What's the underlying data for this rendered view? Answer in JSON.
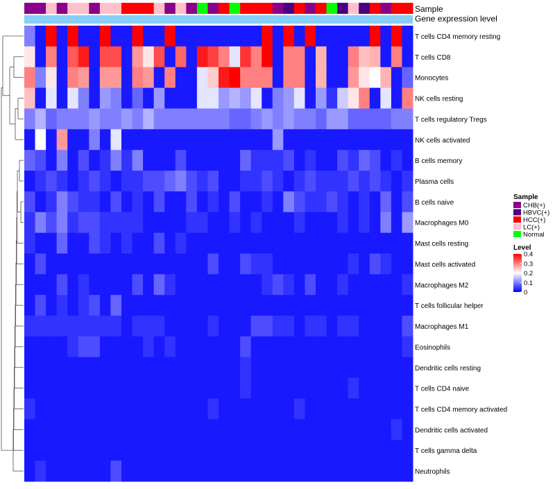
{
  "chart_data": {
    "type": "heatmap",
    "annotations": [
      {
        "name": "Sample"
      },
      {
        "name": "Gene expression level"
      }
    ],
    "gene_expression_color": "#87cefa",
    "sample_groups": [
      "CHB(+)",
      "HBVC(+)",
      "HCC(+)",
      "LC(+)",
      "Normal"
    ],
    "sample_colors": {
      "CHB(+)": "#8b008b",
      "HBVC(+)": "#4b0082",
      "HCC(+)": "#ff0000",
      "LC(+)": "#ffc0cb",
      "Normal": "#00ff00"
    },
    "samples": [
      "CHB(+)",
      "CHB(+)",
      "LC(+)",
      "CHB(+)",
      "LC(+)",
      "LC(+)",
      "CHB(+)",
      "LC(+)",
      "LC(+)",
      "HCC(+)",
      "HCC(+)",
      "HCC(+)",
      "LC(+)",
      "CHB(+)",
      "LC(+)",
      "CHB(+)",
      "Normal",
      "CHB(+)",
      "HCC(+)",
      "Normal",
      "HCC(+)",
      "HCC(+)",
      "HCC(+)",
      "CHB(+)",
      "HBVC(+)",
      "HCC(+)",
      "CHB(+)",
      "HCC(+)",
      "Normal",
      "HBVC(+)",
      "LC(+)",
      "HBVC(+)",
      "HCC(+)",
      "CHB(+)",
      "HCC(+)",
      "HCC(+)"
    ],
    "rows": [
      "T cells CD4 memory resting",
      "T cells CD8",
      "Monocytes",
      "NK cells resting",
      "T cells regulatory  Tregs",
      "NK cells activated",
      "B cells memory",
      "Plasma cells",
      "B cells naive",
      "Macrophages M0",
      "Mast cells resting",
      "Mast cells activated",
      "Macrophages M2",
      "T cells follicular helper",
      "Macrophages M1",
      "Eosinophils",
      "Dendritic cells resting",
      "T cells CD4 naive",
      "T cells CD4 memory activated",
      "Dendritic cells activated",
      "T cells gamma delta",
      "Neutrophils"
    ],
    "values": [
      [
        0.1,
        0.02,
        0.4,
        0.02,
        0.4,
        0.02,
        0.02,
        0.4,
        0.02,
        0.02,
        0.4,
        0.02,
        0.02,
        0.4,
        0.02,
        0.02,
        0.02,
        0.02,
        0.02,
        0.02,
        0.02,
        0.02,
        0.4,
        0.02,
        0.4,
        0.02,
        0.4,
        0.02,
        0.02,
        0.02,
        0.02,
        0.02,
        0.4,
        0.02,
        0.4,
        0.02
      ],
      [
        0.22,
        0.02,
        0.3,
        0.02,
        0.33,
        0.38,
        0.02,
        0.34,
        0.34,
        0.02,
        0.28,
        0.22,
        0.34,
        0.02,
        0.32,
        0.02,
        0.38,
        0.35,
        0.3,
        0.18,
        0.36,
        0.3,
        0.4,
        0.02,
        0.3,
        0.3,
        0.02,
        0.26,
        0.02,
        0.02,
        0.3,
        0.25,
        0.26,
        0.02,
        0.3,
        0.02
      ],
      [
        0.3,
        0.1,
        0.22,
        0.02,
        0.3,
        0.28,
        0.02,
        0.28,
        0.28,
        0.02,
        0.3,
        0.28,
        0.02,
        0.3,
        0.02,
        0.02,
        0.18,
        0.24,
        0.38,
        0.4,
        0.3,
        0.3,
        0.3,
        0.02,
        0.3,
        0.3,
        0.02,
        0.26,
        0.02,
        0.02,
        0.28,
        0.22,
        0.2,
        0.26,
        0.02,
        0.08
      ],
      [
        0.25,
        0.02,
        0.18,
        0.02,
        0.18,
        0.1,
        0.02,
        0.12,
        0.1,
        0.02,
        0.08,
        0.02,
        0.12,
        0.02,
        0.02,
        0.02,
        0.18,
        0.18,
        0.12,
        0.14,
        0.12,
        0.18,
        0.02,
        0.1,
        0.12,
        0.18,
        0.02,
        0.12,
        0.04,
        0.16,
        0.22,
        0.3,
        0.02,
        0.18,
        0.02,
        0.3
      ],
      [
        0.1,
        0.14,
        0.08,
        0.1,
        0.1,
        0.1,
        0.12,
        0.1,
        0.1,
        0.12,
        0.1,
        0.14,
        0.1,
        0.1,
        0.1,
        0.1,
        0.1,
        0.1,
        0.1,
        0.08,
        0.08,
        0.1,
        0.12,
        0.1,
        0.12,
        0.1,
        0.1,
        0.08,
        0.12,
        0.12,
        0.08,
        0.08,
        0.08,
        0.08,
        0.1,
        0.1
      ],
      [
        0.02,
        0.2,
        0.02,
        0.28,
        0.02,
        0.02,
        0.1,
        0.02,
        0.18,
        0.02,
        0.02,
        0.02,
        0.02,
        0.02,
        0.02,
        0.02,
        0.02,
        0.02,
        0.02,
        0.02,
        0.02,
        0.02,
        0.02,
        0.12,
        0.02,
        0.02,
        0.02,
        0.02,
        0.02,
        0.02,
        0.02,
        0.02,
        0.02,
        0.02,
        0.02,
        0.02
      ],
      [
        0.08,
        0.06,
        0.02,
        0.1,
        0.02,
        0.06,
        0.02,
        0.04,
        0.1,
        0.04,
        0.1,
        0.02,
        0.02,
        0.02,
        0.06,
        0.02,
        0.02,
        0.02,
        0.02,
        0.02,
        0.08,
        0.04,
        0.04,
        0.04,
        0.06,
        0.02,
        0.04,
        0.02,
        0.02,
        0.06,
        0.04,
        0.08,
        0.06,
        0.02,
        0.04,
        0.02
      ],
      [
        0.02,
        0.04,
        0.06,
        0.04,
        0.02,
        0.04,
        0.06,
        0.04,
        0.02,
        0.04,
        0.04,
        0.06,
        0.06,
        0.08,
        0.1,
        0.06,
        0.04,
        0.06,
        0.02,
        0.02,
        0.04,
        0.04,
        0.06,
        0.04,
        0.02,
        0.04,
        0.06,
        0.04,
        0.04,
        0.04,
        0.06,
        0.04,
        0.06,
        0.04,
        0.02,
        0.04
      ],
      [
        0.06,
        0.02,
        0.04,
        0.1,
        0.06,
        0.04,
        0.04,
        0.02,
        0.06,
        0.02,
        0.04,
        0.02,
        0.06,
        0.02,
        0.02,
        0.06,
        0.02,
        0.04,
        0.02,
        0.06,
        0.02,
        0.02,
        0.04,
        0.02,
        0.1,
        0.06,
        0.04,
        0.04,
        0.06,
        0.04,
        0.02,
        0.04,
        0.02,
        0.08,
        0.02,
        0.06
      ],
      [
        0.04,
        0.1,
        0.06,
        0.1,
        0.04,
        0.06,
        0.06,
        0.04,
        0.04,
        0.04,
        0.04,
        0.02,
        0.02,
        0.02,
        0.02,
        0.04,
        0.04,
        0.02,
        0.02,
        0.04,
        0.02,
        0.04,
        0.02,
        0.02,
        0.02,
        0.04,
        0.02,
        0.02,
        0.02,
        0.04,
        0.02,
        0.04,
        0.02,
        0.1,
        0.02,
        0.12
      ],
      [
        0.04,
        0.02,
        0.02,
        0.08,
        0.02,
        0.02,
        0.06,
        0.04,
        0.02,
        0.04,
        0.02,
        0.02,
        0.06,
        0.02,
        0.04,
        0.02,
        0.02,
        0.02,
        0.02,
        0.02,
        0.02,
        0.02,
        0.02,
        0.02,
        0.02,
        0.02,
        0.02,
        0.02,
        0.02,
        0.02,
        0.02,
        0.02,
        0.02,
        0.02,
        0.02,
        0.02
      ],
      [
        0.02,
        0.06,
        0.02,
        0.02,
        0.02,
        0.02,
        0.02,
        0.02,
        0.02,
        0.02,
        0.02,
        0.02,
        0.02,
        0.02,
        0.02,
        0.02,
        0.02,
        0.06,
        0.02,
        0.02,
        0.06,
        0.04,
        0.04,
        0.02,
        0.02,
        0.02,
        0.02,
        0.02,
        0.02,
        0.02,
        0.04,
        0.02,
        0.06,
        0.04,
        0.02,
        0.02
      ],
      [
        0.02,
        0.02,
        0.02,
        0.06,
        0.02,
        0.04,
        0.02,
        0.02,
        0.02,
        0.02,
        0.06,
        0.02,
        0.08,
        0.04,
        0.02,
        0.02,
        0.02,
        0.02,
        0.02,
        0.02,
        0.02,
        0.02,
        0.04,
        0.06,
        0.04,
        0.02,
        0.06,
        0.02,
        0.02,
        0.04,
        0.02,
        0.02,
        0.02,
        0.02,
        0.02,
        0.04
      ],
      [
        0.02,
        0.06,
        0.02,
        0.04,
        0.02,
        0.04,
        0.06,
        0.02,
        0.08,
        0.02,
        0.02,
        0.02,
        0.02,
        0.02,
        0.02,
        0.02,
        0.02,
        0.02,
        0.02,
        0.02,
        0.02,
        0.02,
        0.02,
        0.02,
        0.02,
        0.02,
        0.02,
        0.02,
        0.02,
        0.02,
        0.02,
        0.02,
        0.02,
        0.02,
        0.02,
        0.02
      ],
      [
        0.04,
        0.04,
        0.04,
        0.04,
        0.04,
        0.04,
        0.04,
        0.04,
        0.04,
        0.02,
        0.04,
        0.04,
        0.04,
        0.02,
        0.02,
        0.02,
        0.02,
        0.04,
        0.02,
        0.02,
        0.02,
        0.06,
        0.06,
        0.04,
        0.04,
        0.02,
        0.04,
        0.04,
        0.02,
        0.04,
        0.04,
        0.02,
        0.02,
        0.02,
        0.02,
        0.06
      ],
      [
        0.02,
        0.02,
        0.02,
        0.02,
        0.04,
        0.06,
        0.06,
        0.02,
        0.02,
        0.02,
        0.02,
        0.04,
        0.02,
        0.04,
        0.02,
        0.02,
        0.02,
        0.02,
        0.02,
        0.02,
        0.06,
        0.02,
        0.02,
        0.02,
        0.02,
        0.02,
        0.02,
        0.02,
        0.02,
        0.02,
        0.02,
        0.02,
        0.02,
        0.02,
        0.02,
        0.04
      ],
      [
        0.02,
        0.02,
        0.02,
        0.02,
        0.02,
        0.02,
        0.02,
        0.02,
        0.02,
        0.02,
        0.02,
        0.02,
        0.02,
        0.02,
        0.02,
        0.02,
        0.02,
        0.02,
        0.02,
        0.02,
        0.04,
        0.02,
        0.02,
        0.02,
        0.02,
        0.02,
        0.02,
        0.02,
        0.02,
        0.02,
        0.02,
        0.02,
        0.02,
        0.02,
        0.02,
        0.02
      ],
      [
        0.02,
        0.02,
        0.02,
        0.02,
        0.02,
        0.02,
        0.02,
        0.02,
        0.02,
        0.02,
        0.02,
        0.02,
        0.02,
        0.02,
        0.02,
        0.02,
        0.02,
        0.02,
        0.02,
        0.02,
        0.04,
        0.02,
        0.02,
        0.02,
        0.02,
        0.02,
        0.02,
        0.02,
        0.02,
        0.02,
        0.04,
        0.02,
        0.02,
        0.02,
        0.02,
        0.02
      ],
      [
        0.04,
        0.02,
        0.02,
        0.02,
        0.02,
        0.02,
        0.02,
        0.02,
        0.02,
        0.02,
        0.02,
        0.02,
        0.02,
        0.02,
        0.02,
        0.02,
        0.02,
        0.04,
        0.02,
        0.02,
        0.02,
        0.02,
        0.02,
        0.02,
        0.02,
        0.04,
        0.02,
        0.02,
        0.02,
        0.02,
        0.02,
        0.02,
        0.02,
        0.02,
        0.02,
        0.02
      ],
      [
        0.02,
        0.02,
        0.02,
        0.02,
        0.02,
        0.02,
        0.02,
        0.02,
        0.02,
        0.02,
        0.02,
        0.02,
        0.02,
        0.02,
        0.02,
        0.02,
        0.02,
        0.02,
        0.02,
        0.02,
        0.02,
        0.02,
        0.02,
        0.02,
        0.02,
        0.02,
        0.02,
        0.02,
        0.02,
        0.02,
        0.02,
        0.02,
        0.02,
        0.02,
        0.04,
        0.02
      ],
      [
        0.02,
        0.02,
        0.02,
        0.02,
        0.02,
        0.02,
        0.02,
        0.02,
        0.02,
        0.02,
        0.02,
        0.02,
        0.02,
        0.02,
        0.02,
        0.02,
        0.02,
        0.02,
        0.02,
        0.02,
        0.02,
        0.02,
        0.02,
        0.02,
        0.02,
        0.02,
        0.02,
        0.02,
        0.02,
        0.02,
        0.02,
        0.02,
        0.02,
        0.02,
        0.02,
        0.02
      ],
      [
        0.02,
        0.04,
        0.02,
        0.02,
        0.02,
        0.02,
        0.02,
        0.02,
        0.06,
        0.02,
        0.02,
        0.02,
        0.02,
        0.02,
        0.02,
        0.02,
        0.02,
        0.02,
        0.02,
        0.02,
        0.02,
        0.02,
        0.02,
        0.02,
        0.02,
        0.02,
        0.02,
        0.02,
        0.02,
        0.02,
        0.02,
        0.02,
        0.02,
        0.02,
        0.02,
        0.02
      ]
    ],
    "legend_sample_title": "Sample",
    "legend_level_title": "Level",
    "level_ticks": [
      0.4,
      0.3,
      0.2,
      0.1,
      0
    ],
    "level_tick_labels": [
      "0.4",
      "0.3",
      "0.2",
      "0.1",
      "0"
    ],
    "vmin": 0,
    "vmax": 0.4,
    "color_scale": {
      "low": "#0000ff",
      "mid": "#ffffff",
      "high": "#ff0000",
      "mid_value": 0.2
    }
  }
}
